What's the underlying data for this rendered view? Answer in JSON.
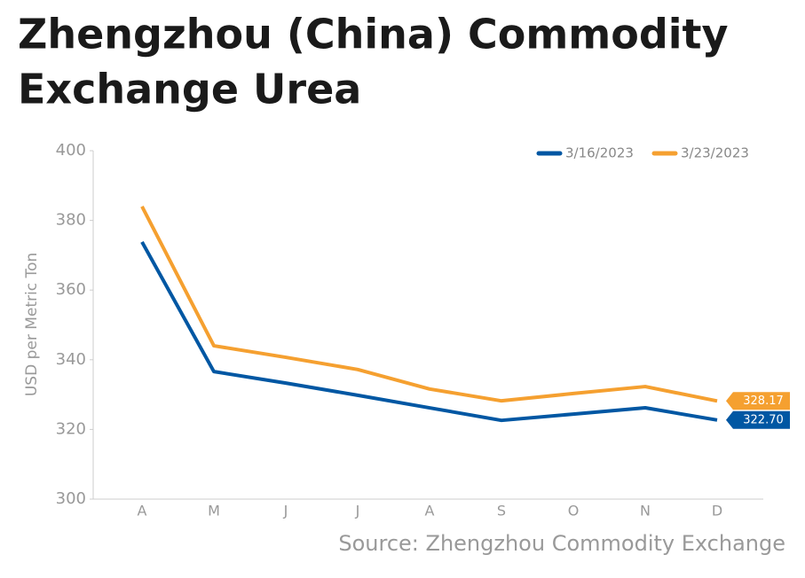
{
  "chart_data": {
    "type": "line",
    "title": [
      "Zhengzhou (China) Commodity",
      "Exchange Urea"
    ],
    "y_label": "USD per Metric Ton",
    "source": "Source: Zhengzhou Commodity Exchange",
    "categories": [
      "A",
      "M",
      "J",
      "J",
      "A",
      "S",
      "O",
      "N",
      "D"
    ],
    "series": [
      {
        "name": "3/16/2023",
        "color": "#0057a3",
        "values": [
          373.8,
          336.6,
          333.3,
          329.8,
          326.2,
          322.6,
          324.4,
          326.2,
          322.7
        ],
        "value_labels": [
          null,
          null,
          null,
          null,
          null,
          null,
          null,
          null,
          "322.70"
        ]
      },
      {
        "name": "3/23/2023",
        "color": "#f5a030",
        "values": [
          384,
          344,
          340.7,
          337.2,
          331.6,
          328.2,
          330.3,
          332.3,
          328.17
        ],
        "value_labels": [
          null,
          null,
          null,
          null,
          null,
          null,
          null,
          null,
          "328.17"
        ]
      }
    ],
    "ylim": [
      300,
      400
    ],
    "yticks": [
      300,
      320,
      340,
      360,
      380,
      400
    ],
    "legend": "top-right"
  }
}
